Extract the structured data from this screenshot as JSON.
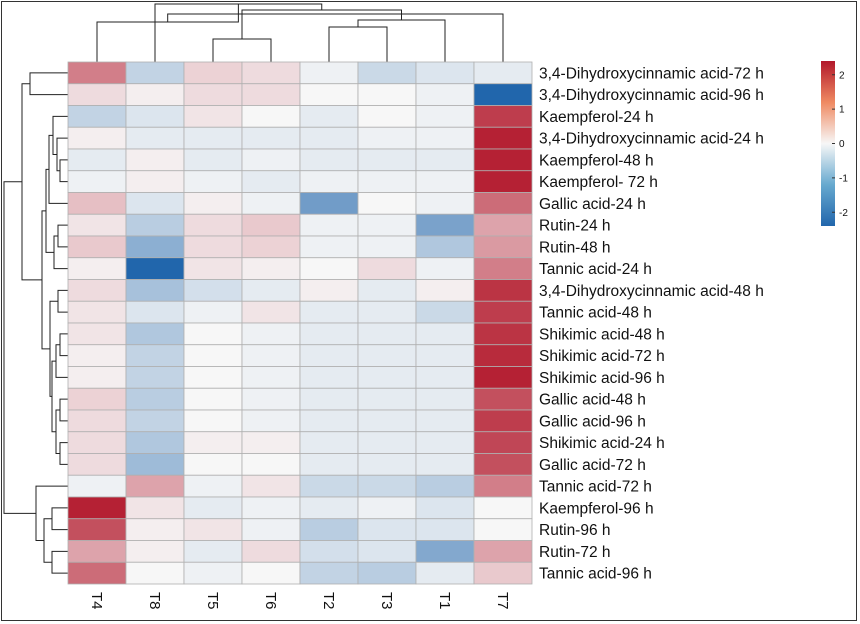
{
  "chart_data": {
    "type": "heatmap",
    "title": "",
    "columns": [
      "T4",
      "T8",
      "T5",
      "T6",
      "T2",
      "T3",
      "T1",
      "T7"
    ],
    "rows": [
      "3,4-Dihydroxycinnamic acid-72 h",
      "3,4-Dihydroxycinnamic acid-96 h",
      "Kaempferol-24 h",
      "3,4-Dihydroxycinnamic acid-24 h",
      "Kaempferol-48 h",
      "Kaempferol- 72 h",
      "Gallic acid-24 h",
      "Rutin-24 h",
      "Rutin-48 h",
      "Tannic acid-24 h",
      "3,4-Dihydroxycinnamic acid-48 h",
      "Tannic acid-48 h",
      "Shikimic acid-48 h",
      "Shikimic acid-72 h",
      "Shikimic acid-96 h",
      "Gallic acid-48 h",
      "Gallic acid-96 h",
      "Shikimic acid-24 h",
      "Gallic acid-72 h",
      "Tannic acid-72 h",
      "Kaempferol-96 h",
      "Rutin-96 h",
      "Rutin-72 h",
      "Tannic acid-96 h"
    ],
    "values": [
      [
        1.3,
        -0.6,
        0.4,
        0.3,
        -0.1,
        -0.5,
        -0.3,
        -0.2
      ],
      [
        0.3,
        0.1,
        0.3,
        0.3,
        0.0,
        0.0,
        -0.1,
        -2.4
      ],
      [
        -0.6,
        -0.3,
        0.2,
        0.0,
        -0.2,
        0.0,
        -0.1,
        2.0
      ],
      [
        0.1,
        -0.2,
        -0.2,
        -0.2,
        -0.2,
        -0.1,
        -0.1,
        2.3
      ],
      [
        -0.2,
        0.1,
        -0.2,
        -0.1,
        -0.2,
        -0.2,
        -0.2,
        2.3
      ],
      [
        -0.1,
        0.1,
        -0.1,
        -0.2,
        -0.1,
        -0.1,
        -0.1,
        2.3
      ],
      [
        0.6,
        -0.3,
        0.1,
        -0.1,
        -1.5,
        0.0,
        -0.1,
        1.5
      ],
      [
        0.2,
        -0.7,
        0.3,
        0.5,
        -0.1,
        -0.1,
        -1.4,
        0.9
      ],
      [
        0.5,
        -1.2,
        0.3,
        0.4,
        -0.1,
        -0.1,
        -0.8,
        1.0
      ],
      [
        0.1,
        -2.4,
        0.2,
        0.1,
        0.0,
        0.3,
        -0.1,
        1.3
      ],
      [
        0.3,
        -0.9,
        -0.4,
        -0.2,
        0.1,
        -0.2,
        0.1,
        2.1
      ],
      [
        0.2,
        -0.3,
        -0.1,
        0.2,
        -0.2,
        -0.2,
        -0.5,
        2.0
      ],
      [
        0.2,
        -0.8,
        0.0,
        -0.1,
        -0.2,
        -0.2,
        -0.2,
        2.1
      ],
      [
        0.1,
        -0.6,
        0.0,
        -0.1,
        -0.2,
        -0.2,
        -0.2,
        2.2
      ],
      [
        0.1,
        -0.6,
        0.0,
        -0.1,
        -0.2,
        -0.2,
        -0.2,
        2.3
      ],
      [
        0.4,
        -0.7,
        0.0,
        -0.1,
        -0.2,
        -0.2,
        -0.2,
        1.8
      ],
      [
        0.3,
        -0.6,
        0.0,
        -0.1,
        -0.2,
        -0.2,
        -0.2,
        2.0
      ],
      [
        0.3,
        -0.8,
        0.1,
        0.1,
        -0.2,
        -0.2,
        -0.2,
        1.9
      ],
      [
        0.3,
        -1.0,
        0.0,
        0.0,
        -0.2,
        -0.2,
        -0.2,
        1.8
      ],
      [
        -0.1,
        0.9,
        -0.1,
        0.2,
        -0.5,
        -0.5,
        -0.7,
        1.3
      ],
      [
        2.3,
        0.2,
        -0.2,
        -0.1,
        -0.2,
        -0.1,
        -0.3,
        0.0
      ],
      [
        1.8,
        0.1,
        0.2,
        -0.1,
        -0.7,
        -0.3,
        -0.3,
        0.0
      ],
      [
        0.9,
        0.1,
        -0.2,
        0.3,
        -0.4,
        -0.3,
        -1.3,
        0.9
      ],
      [
        1.5,
        0.0,
        -0.1,
        0.0,
        -0.6,
        -0.7,
        -0.2,
        0.5
      ]
    ],
    "colorbar": {
      "min": -2.4,
      "max": 2.4,
      "ticks": [
        2,
        1,
        0,
        -1,
        -2
      ],
      "tick_labels": [
        "2",
        "1",
        "0",
        "-1",
        "-2"
      ],
      "low_color": "#2166ac",
      "mid_color": "#f7f7f7",
      "high_color": "#b2182b"
    },
    "row_dendrogram": true,
    "column_dendrogram": true,
    "xlabel": "",
    "ylabel": ""
  }
}
